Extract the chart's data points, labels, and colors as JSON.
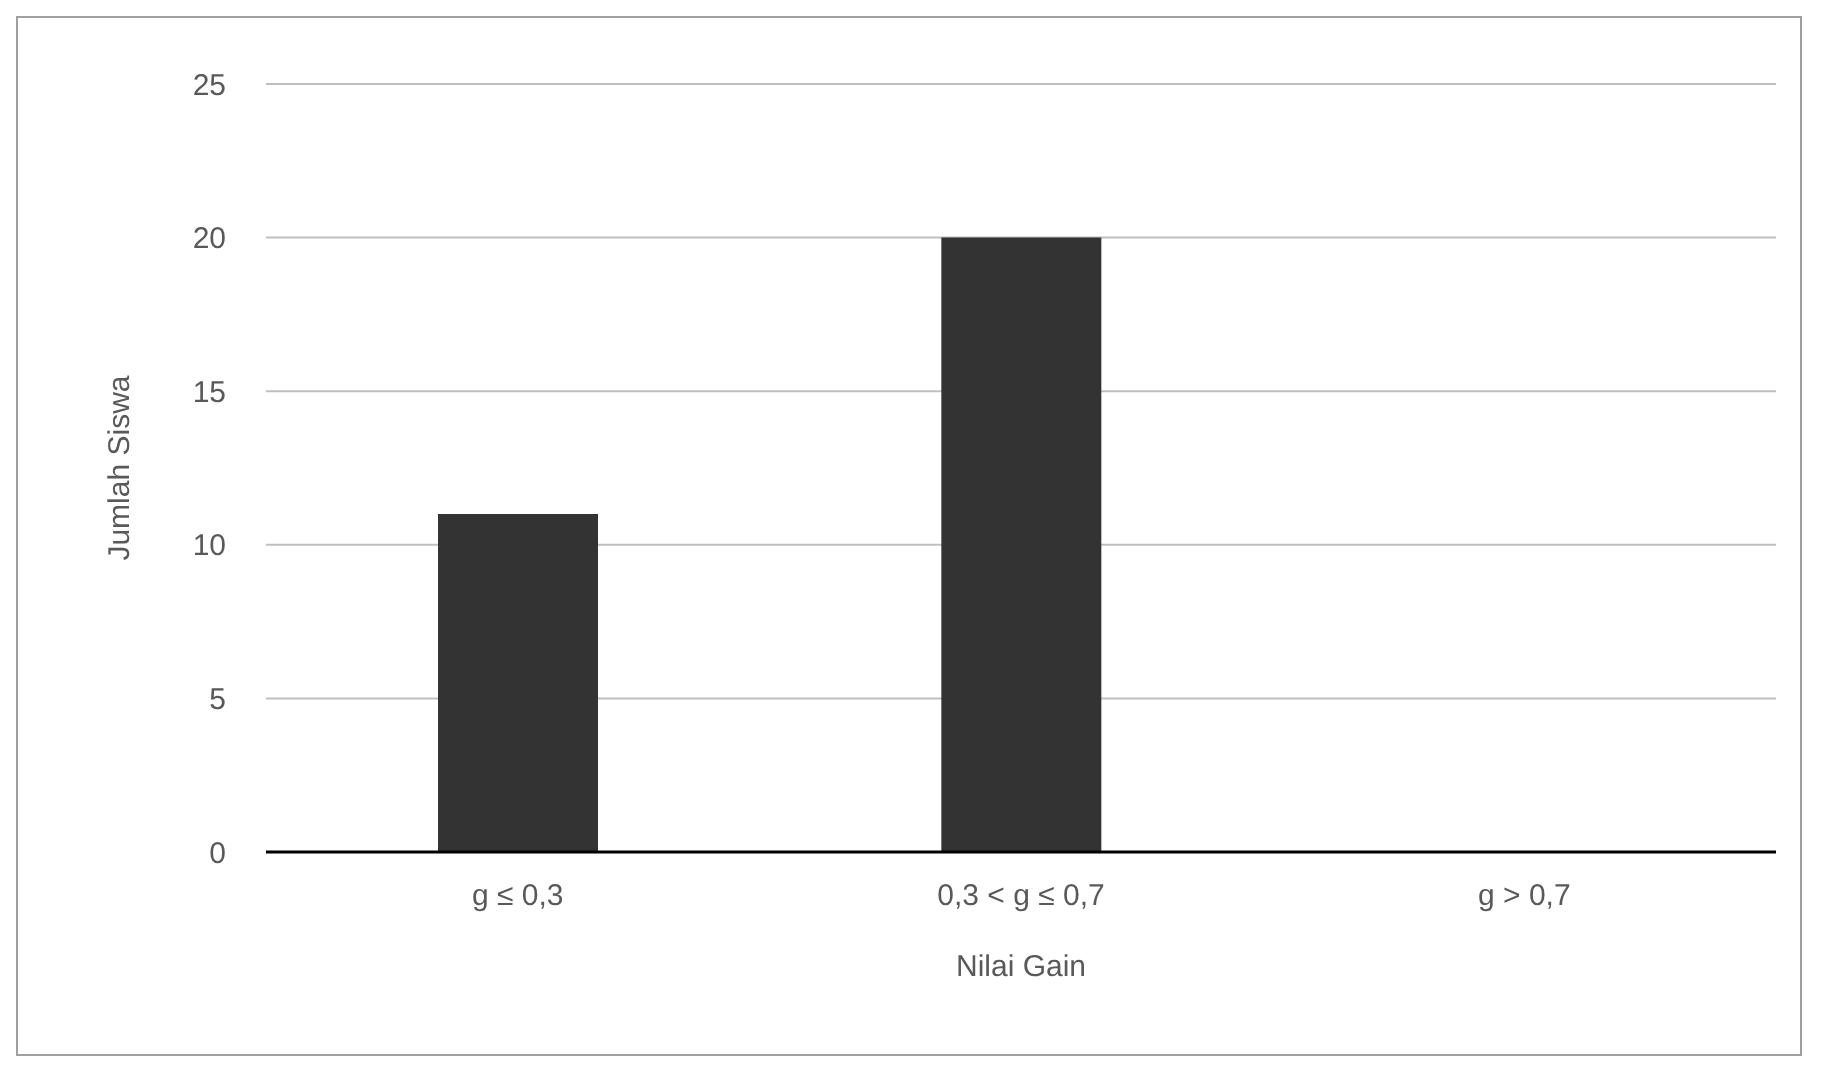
{
  "chart_data": {
    "type": "bar",
    "xlabel": "Nilai Gain",
    "ylabel": "Jumlah Siswa",
    "categories": [
      "g ≤ 0,3",
      "0,3 < g ≤ 0,7",
      "g > 0,7"
    ],
    "values": [
      11,
      20,
      0
    ],
    "color": "#333333",
    "ylim": [
      0,
      25
    ],
    "yticks": [
      0,
      5,
      10,
      15,
      20,
      25
    ],
    "grid": "y"
  }
}
